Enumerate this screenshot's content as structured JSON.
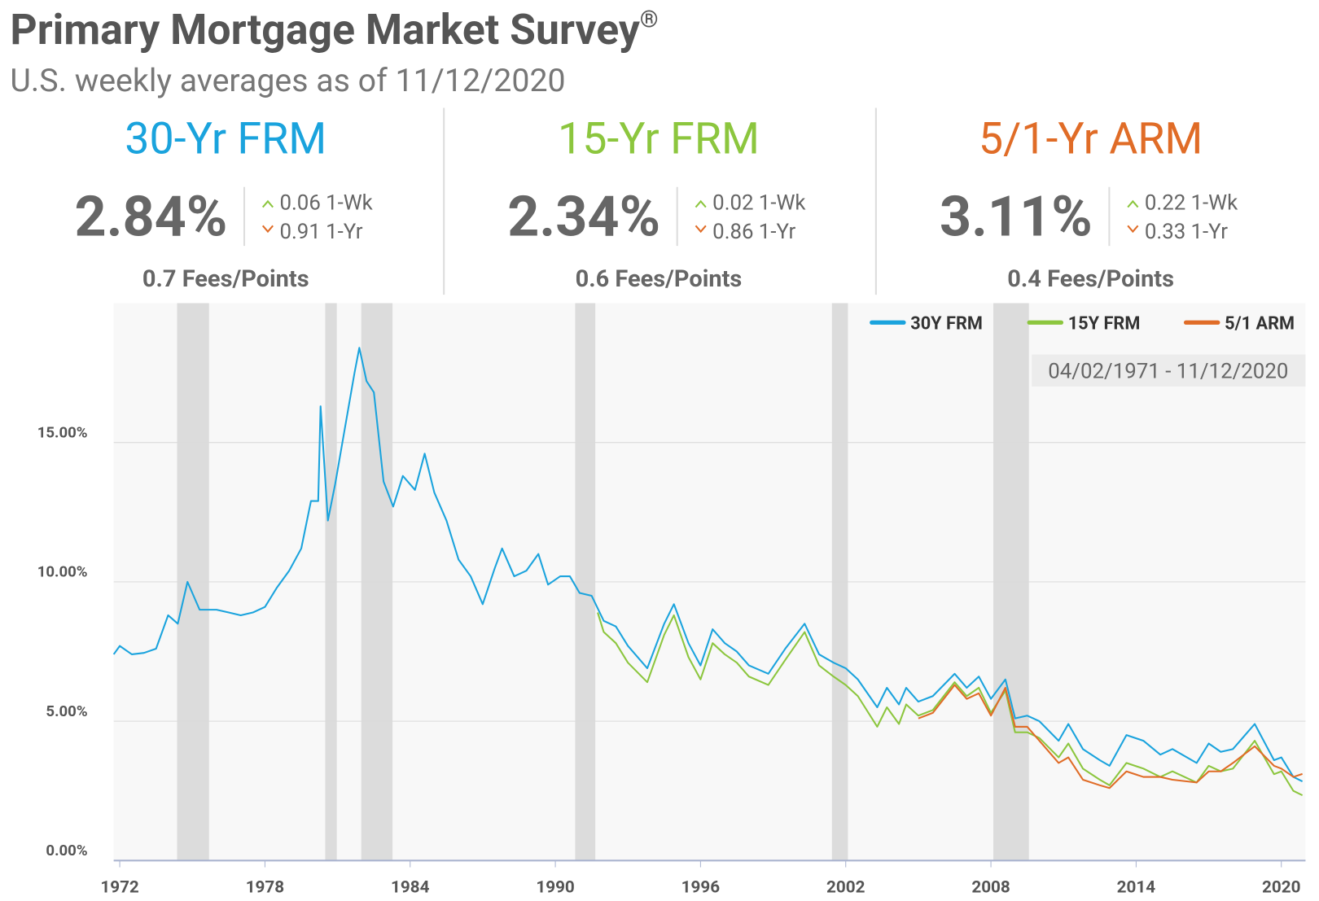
{
  "header": {
    "title": "Primary Mortgage Market Survey",
    "title_mark": "®",
    "subtitle": "U.S. weekly averages as of 11/12/2020"
  },
  "summary": [
    {
      "name": "30-Yr FRM",
      "color": "#1aa3dd",
      "rate": "2.84%",
      "week_change": "0.06",
      "week_period": "1-Wk",
      "year_change": "0.91",
      "year_period": "1-Yr",
      "fees": "0.7 Fees/Points"
    },
    {
      "name": "15-Yr FRM",
      "color": "#8cc63e",
      "rate": "2.34%",
      "week_change": "0.02",
      "week_period": "1-Wk",
      "year_change": "0.86",
      "year_period": "1-Yr",
      "fees": "0.6 Fees/Points"
    },
    {
      "name": "5/1-Yr ARM",
      "color": "#e06c27",
      "rate": "3.11%",
      "week_change": "0.22",
      "week_period": "1-Wk",
      "year_change": "0.33",
      "year_period": "1-Yr",
      "fees": "0.4 Fees/Points"
    }
  ],
  "chart_data": {
    "type": "line",
    "date_range": "04/02/1971 - 11/12/2020",
    "xlim": [
      1971.75,
      2021
    ],
    "xticks": [
      1972,
      1978,
      1984,
      1990,
      1996,
      2002,
      2008,
      2014,
      2020
    ],
    "ylim": [
      0,
      20
    ],
    "yticks": [
      {
        "value": 0,
        "label": "0.00%"
      },
      {
        "value": 5,
        "label": "5.00%"
      },
      {
        "value": 10,
        "label": "10.00%"
      },
      {
        "value": 15,
        "label": "15.00%"
      }
    ],
    "grid": true,
    "legend": "top-right",
    "shaded_periods": [
      [
        1974.37,
        1975.69
      ],
      [
        1980.49,
        1980.97
      ],
      [
        1981.98,
        1983.27
      ],
      [
        1990.82,
        1991.65
      ],
      [
        2001.43,
        2002.09
      ],
      [
        2008.1,
        2009.57
      ]
    ],
    "series": [
      {
        "name": "30Y FRM",
        "color": "#1aa3dd",
        "x": [
          1971.75,
          1972,
          1972.5,
          1973,
          1973.5,
          1974,
          1974.4,
          1974.8,
          1975.3,
          1976,
          1976.5,
          1977,
          1977.5,
          1978,
          1978.5,
          1979,
          1979.5,
          1979.9,
          1980.2,
          1980.3,
          1980.6,
          1980.9,
          1981.3,
          1981.7,
          1981.9,
          1982.2,
          1982.5,
          1982.9,
          1983.3,
          1983.7,
          1984.2,
          1984.6,
          1985,
          1985.5,
          1986,
          1986.5,
          1987,
          1987.5,
          1987.8,
          1988.3,
          1988.8,
          1989.3,
          1989.7,
          1990.2,
          1990.6,
          1991,
          1991.5,
          1992,
          1992.5,
          1993,
          1993.8,
          1994.5,
          1994.9,
          1995.5,
          1996,
          1996.5,
          1997,
          1997.5,
          1998,
          1998.8,
          1999.5,
          2000.3,
          2000.9,
          2001.5,
          2002,
          2002.5,
          2003.3,
          2003.7,
          2004.2,
          2004.5,
          2005,
          2005.6,
          2006.5,
          2007,
          2007.5,
          2008,
          2008.6,
          2009,
          2009.5,
          2010,
          2010.8,
          2011.2,
          2011.8,
          2012.5,
          2012.9,
          2013.6,
          2014.3,
          2015,
          2015.5,
          2016.5,
          2017,
          2017.5,
          2018,
          2018.9,
          2019.7,
          2020,
          2020.5,
          2020.87
        ],
        "values": [
          7.4,
          7.7,
          7.4,
          7.45,
          7.6,
          8.8,
          8.5,
          10.0,
          9.0,
          9.0,
          8.9,
          8.8,
          8.9,
          9.1,
          9.8,
          10.4,
          11.2,
          12.9,
          12.9,
          16.3,
          12.2,
          13.5,
          15.5,
          17.5,
          18.4,
          17.2,
          16.8,
          13.6,
          12.7,
          13.8,
          13.3,
          14.6,
          13.2,
          12.2,
          10.8,
          10.2,
          9.2,
          10.5,
          11.2,
          10.2,
          10.4,
          11.0,
          9.9,
          10.2,
          10.2,
          9.6,
          9.5,
          8.6,
          8.4,
          7.7,
          6.9,
          8.5,
          9.2,
          7.8,
          7.0,
          8.3,
          7.8,
          7.5,
          7.0,
          6.7,
          7.6,
          8.5,
          7.4,
          7.1,
          6.9,
          6.5,
          5.5,
          6.2,
          5.6,
          6.2,
          5.7,
          5.9,
          6.7,
          6.2,
          6.6,
          5.8,
          6.5,
          5.1,
          5.2,
          5.0,
          4.3,
          4.9,
          4.0,
          3.6,
          3.4,
          4.5,
          4.3,
          3.8,
          4.0,
          3.5,
          4.2,
          3.9,
          4.0,
          4.9,
          3.6,
          3.7,
          3.0,
          2.84
        ]
      },
      {
        "name": "15Y FRM",
        "color": "#8cc63e",
        "x": [
          1991.75,
          1992,
          1992.5,
          1993,
          1993.8,
          1994.5,
          1994.9,
          1995.5,
          1996,
          1996.5,
          1997,
          1997.5,
          1998,
          1998.8,
          1999.5,
          2000.3,
          2000.9,
          2001.5,
          2002,
          2002.5,
          2003.3,
          2003.7,
          2004.2,
          2004.5,
          2005,
          2005.6,
          2006.5,
          2007,
          2007.5,
          2008,
          2008.6,
          2009,
          2009.5,
          2010,
          2010.8,
          2011.2,
          2011.8,
          2012.5,
          2012.9,
          2013.6,
          2014.3,
          2015,
          2015.5,
          2016.5,
          2017,
          2017.5,
          2018,
          2018.9,
          2019.7,
          2020,
          2020.5,
          2020.87
        ],
        "values": [
          8.9,
          8.2,
          7.8,
          7.1,
          6.4,
          8.1,
          8.8,
          7.3,
          6.5,
          7.8,
          7.4,
          7.1,
          6.6,
          6.3,
          7.2,
          8.2,
          7.0,
          6.6,
          6.3,
          5.9,
          4.8,
          5.5,
          4.9,
          5.6,
          5.2,
          5.4,
          6.4,
          5.9,
          6.2,
          5.3,
          6.1,
          4.6,
          4.6,
          4.4,
          3.7,
          4.2,
          3.3,
          2.9,
          2.7,
          3.5,
          3.3,
          3.0,
          3.2,
          2.8,
          3.4,
          3.2,
          3.3,
          4.3,
          3.1,
          3.2,
          2.5,
          2.34
        ]
      },
      {
        "name": "5/1 ARM",
        "color": "#e06c27",
        "x": [
          2005,
          2005.6,
          2006.5,
          2007,
          2007.5,
          2008,
          2008.6,
          2009,
          2009.5,
          2010,
          2010.8,
          2011.2,
          2011.8,
          2012.5,
          2012.9,
          2013.6,
          2014.3,
          2015,
          2015.5,
          2016.5,
          2017,
          2017.5,
          2018,
          2018.9,
          2019.7,
          2020,
          2020.5,
          2020.87
        ],
        "values": [
          5.1,
          5.3,
          6.3,
          5.8,
          6.0,
          5.2,
          6.2,
          4.8,
          4.8,
          4.3,
          3.5,
          3.7,
          2.9,
          2.7,
          2.6,
          3.2,
          3.0,
          3.0,
          2.9,
          2.8,
          3.2,
          3.2,
          3.5,
          4.1,
          3.4,
          3.3,
          3.0,
          3.11
        ]
      }
    ]
  }
}
